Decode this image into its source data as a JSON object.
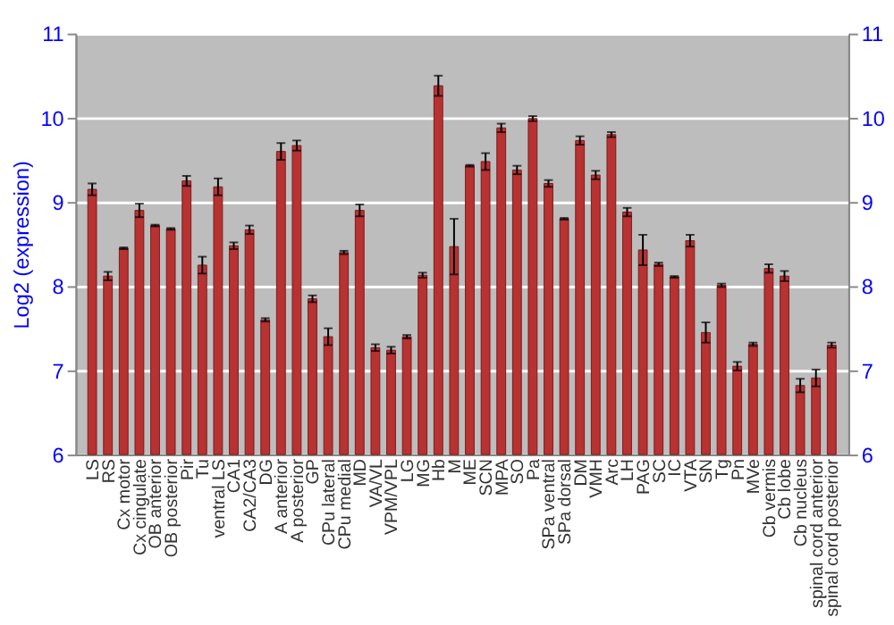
{
  "chart_data": {
    "type": "bar",
    "ylabel": "Log2 (expression)",
    "categories": [
      "LS",
      "RS",
      "Cx motor",
      "Cx cingulate",
      "OB anterior",
      "OB posterior",
      "Pir",
      "Tu",
      "ventral LS",
      "CA1",
      "CA2/CA3",
      "DG",
      "A anterior",
      "A posterior",
      "GP",
      "CPu lateral",
      "CPu medial",
      "MD",
      "VA/VL",
      "VPM/VPL",
      "LG",
      "MG",
      "Hb",
      "M",
      "ME",
      "SCN",
      "MPA",
      "SO",
      "Pa",
      "SPa ventral",
      "SPa dorsal",
      "DM",
      "VMH",
      "Arc",
      "LH",
      "PAG",
      "SC",
      "IC",
      "VTA",
      "SN",
      "Tg",
      "Pn",
      "MVe",
      "Cb vermis",
      "Cb lobe",
      "Cb nucleus",
      "spinal cord anterior",
      "spinal cord posterior"
    ],
    "values": [
      9.15,
      8.12,
      8.45,
      8.9,
      8.72,
      8.68,
      9.25,
      8.25,
      9.18,
      8.48,
      8.67,
      7.6,
      9.6,
      9.67,
      7.85,
      7.4,
      8.4,
      8.9,
      7.27,
      7.24,
      7.4,
      8.13,
      10.38,
      8.47,
      9.43,
      9.48,
      9.88,
      9.38,
      9.99,
      9.22,
      8.8,
      9.73,
      9.32,
      9.8,
      8.88,
      8.43,
      8.26,
      8.11,
      8.54,
      7.45,
      8.01,
      7.05,
      7.31,
      8.21,
      8.12,
      6.82,
      6.91,
      7.3
    ],
    "errors": [
      0.07,
      0.05,
      0.01,
      0.08,
      0.01,
      0.01,
      0.06,
      0.1,
      0.1,
      0.04,
      0.05,
      0.02,
      0.1,
      0.06,
      0.04,
      0.1,
      0.02,
      0.07,
      0.04,
      0.04,
      0.02,
      0.03,
      0.12,
      0.33,
      0.01,
      0.1,
      0.05,
      0.05,
      0.03,
      0.04,
      0.01,
      0.05,
      0.05,
      0.03,
      0.05,
      0.18,
      0.02,
      0.01,
      0.07,
      0.12,
      0.02,
      0.05,
      0.02,
      0.05,
      0.06,
      0.08,
      0.1,
      0.03
    ],
    "color": "#b83232",
    "ylim": [
      6,
      11
    ],
    "yticks": [
      6,
      7,
      8,
      9,
      10,
      11
    ],
    "y2lim": [
      6,
      11
    ],
    "y2ticks": [
      6,
      7,
      8,
      9,
      10,
      11
    ],
    "grid": "y"
  }
}
